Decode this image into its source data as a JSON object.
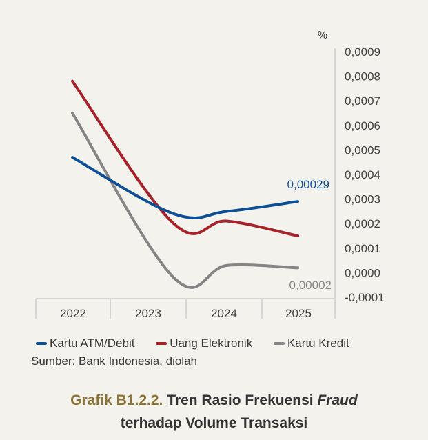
{
  "chart_data": {
    "type": "line",
    "unit_label": "%",
    "categories": [
      "2022",
      "2023",
      "2024",
      "2025"
    ],
    "y_ticks": [
      "0,0009",
      "0,0008",
      "0,0007",
      "0,0006",
      "0,0005",
      "0,0004",
      "0,0003",
      "0,0002",
      "0,0001",
      "0,0000",
      "-0,0001"
    ],
    "ylim": [
      -0.0001,
      0.0009
    ],
    "y_axis_position": "right",
    "grid": false,
    "legend_position": "bottom",
    "series": [
      {
        "name": "Kartu ATM/Debit",
        "color": "#0d4f94",
        "values": [
          0.00047,
          0.00024,
          0.00025,
          0.00029
        ],
        "end_label": "0,00029"
      },
      {
        "name": "Uang Elektronik",
        "color": "#a8222a",
        "values": [
          0.00078,
          0.0002,
          0.00021,
          0.00015
        ]
      },
      {
        "name": "Kartu Kredit",
        "color": "#858585",
        "values": [
          0.00065,
          -2e-05,
          3e-05,
          2e-05
        ],
        "end_label": "0,00002"
      }
    ]
  },
  "source": "Sumber: Bank Indonesia, diolah",
  "caption": {
    "figure_number": "Grafik B1.2.2.",
    "title_before": " Tren Rasio Frekuensi ",
    "title_italic": "Fraud",
    "title_line2": "terhadap Volume Transaksi"
  }
}
